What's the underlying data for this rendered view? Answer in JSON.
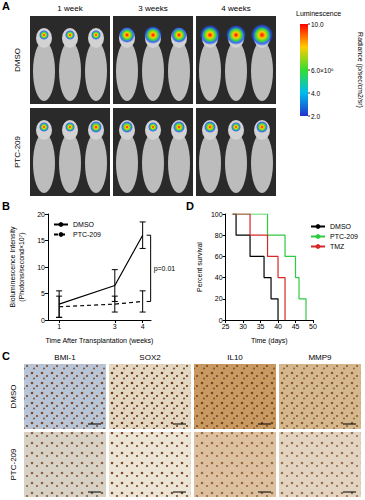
{
  "panel_labels": [
    "A",
    "B",
    "C",
    "D"
  ],
  "bioluminescence_images": {
    "columns": [
      "1 week",
      "3 weeks",
      "4 weeks"
    ],
    "rows": [
      "DMSO",
      "PTC-209"
    ],
    "colorbar": {
      "title": "Luminescence",
      "unit": "Radiance (p/sec/cm2/sr)",
      "range": [
        2,
        10
      ],
      "ticks": [
        {
          "value": 10,
          "label": "10.0"
        },
        {
          "value": 6,
          "label": "6.0×10⁶"
        },
        {
          "value": 4,
          "label": "4.0"
        },
        {
          "value": 2,
          "label": "2.0"
        }
      ]
    }
  },
  "chart_data": [
    {
      "type": "line",
      "xlabel": "Time After Transplantation (weeks)",
      "ylabel": "Bioluminescence Intensity\n(Photons/second×10⁷)",
      "x": [
        1,
        3,
        4
      ],
      "xlim": [
        0.6,
        4.3
      ],
      "xticks": [
        1,
        3,
        4
      ],
      "ylim": [
        0,
        20
      ],
      "yticks": [
        0,
        5,
        10,
        15,
        20
      ],
      "grid": false,
      "legend": "upper left",
      "annotations": [
        "p=0.01"
      ],
      "series": [
        {
          "name": "DMSO",
          "color": "#000000",
          "line_style": "solid",
          "values": [
            3,
            6.5,
            16
          ],
          "errors": [
            2.5,
            3,
            2.5
          ]
        },
        {
          "name": "PTC-209",
          "color": "#000000",
          "line_style": "dashed",
          "values": [
            2.5,
            3,
            3.5
          ],
          "errors": [
            2,
            1.5,
            2
          ]
        }
      ]
    },
    {
      "type": "step",
      "xlabel": "Time (days)",
      "ylabel": "Percent survival",
      "xlim": [
        25,
        50
      ],
      "xticks": [
        25,
        30,
        35,
        40,
        45,
        50
      ],
      "ylim": [
        0,
        100
      ],
      "yticks": [
        0,
        20,
        40,
        60,
        80,
        100
      ],
      "grid": false,
      "legend": "upper right",
      "series": [
        {
          "name": "DMSO",
          "color": "#000000",
          "x": [
            27,
            28,
            32,
            36,
            38,
            40
          ],
          "values": [
            100,
            80,
            60,
            40,
            20,
            0
          ]
        },
        {
          "name": "PTC-209",
          "color": "#2ecc40",
          "x": [
            27,
            37,
            42,
            45,
            46,
            48
          ],
          "values": [
            100,
            80,
            60,
            40,
            20,
            0
          ]
        },
        {
          "name": "TMZ",
          "color": "#d62728",
          "x": [
            27,
            32,
            37,
            40,
            42
          ],
          "values": [
            100,
            80,
            60,
            40,
            0
          ]
        }
      ]
    }
  ],
  "ihc_images": {
    "columns": [
      "BMI-1",
      "SOX2",
      "IL10",
      "MMP9"
    ],
    "rows": [
      "DMSO",
      "PTC-209"
    ]
  }
}
